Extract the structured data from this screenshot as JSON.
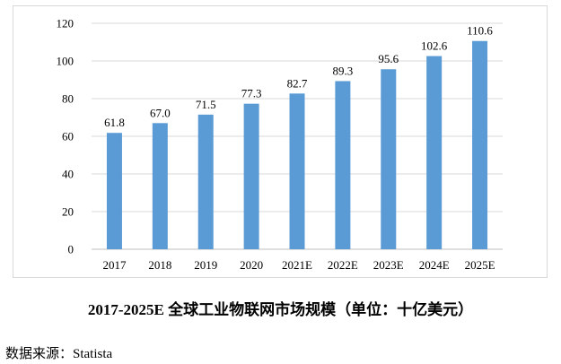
{
  "chart_data": {
    "type": "bar",
    "title": "2017-2025E 全球工业物联网市场规模（单位：十亿美元）",
    "xlabel": "",
    "ylabel": "",
    "categories": [
      "2017",
      "2018",
      "2019",
      "2020",
      "2021E",
      "2022E",
      "2023E",
      "2024E",
      "2025E"
    ],
    "values": [
      61.8,
      67.0,
      71.5,
      77.3,
      82.7,
      89.3,
      95.6,
      102.6,
      110.6
    ],
    "value_labels": [
      "61.8",
      "67.0",
      "71.5",
      "77.3",
      "82.7",
      "89.3",
      "95.6",
      "102.6",
      "110.6"
    ],
    "ylim": [
      0,
      120
    ],
    "yticks": [
      "0",
      "20",
      "40",
      "60",
      "80",
      "100",
      "120"
    ],
    "grid": true,
    "legend": "none",
    "bar_color": "#5b9bd5",
    "grid_color": "#d9d9d9"
  },
  "source_text": "数据来源：Statista"
}
